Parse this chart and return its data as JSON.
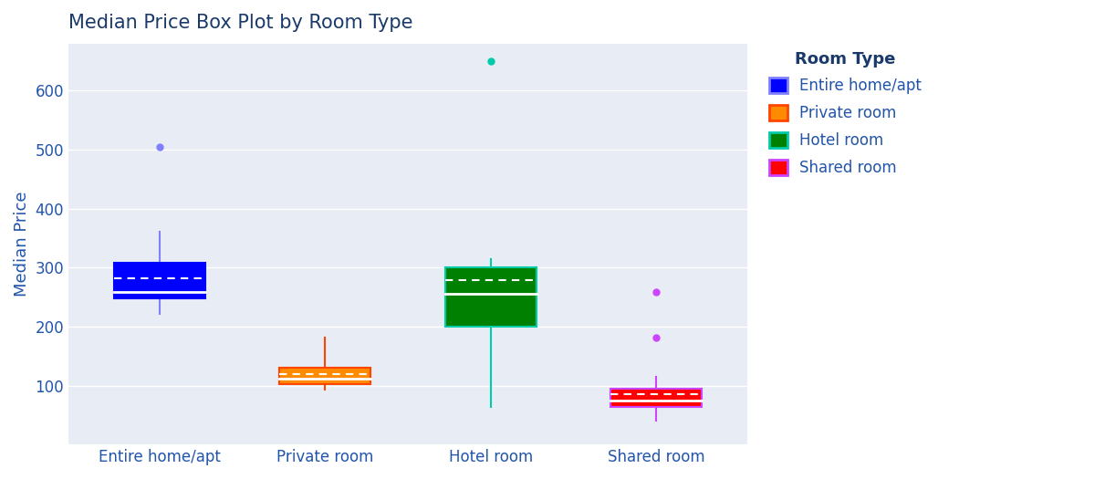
{
  "title": "Median Price Box Plot by Room Type",
  "ylabel": "Median Price",
  "fig_bg": "#ffffff",
  "plot_bg": "#e8edf5",
  "categories": [
    "Entire home/apt",
    "Private room",
    "Hotel room",
    "Shared room"
  ],
  "box_data": [
    {
      "label": "Entire home/apt",
      "box_color": "#0000ff",
      "whisker_color": "#8080ff",
      "outline_color": "#0000ff",
      "med": 258,
      "mean": 282,
      "q1": 248,
      "q3": 308,
      "whislo": 222,
      "whishi": 360,
      "fliers": [
        505
      ]
    },
    {
      "label": "Private room",
      "box_color": "#ff8c00",
      "whisker_color": "#ff4500",
      "outline_color": "#ff4500",
      "med": 112,
      "mean": 120,
      "q1": 103,
      "q3": 130,
      "whislo": 93,
      "whishi": 181,
      "fliers": []
    },
    {
      "label": "Hotel room",
      "box_color": "#008000",
      "whisker_color": "#00ccaa",
      "outline_color": "#00ccaa",
      "med": 255,
      "mean": 278,
      "q1": 200,
      "q3": 300,
      "whislo": 63,
      "whishi": 315,
      "fliers": [
        650
      ]
    },
    {
      "label": "Shared room",
      "box_color": "#ff0000",
      "whisker_color": "#cc44ff",
      "outline_color": "#cc44ff",
      "med": 74,
      "mean": 85,
      "q1": 63,
      "q3": 95,
      "whislo": 40,
      "whishi": 115,
      "fliers": [
        181,
        258
      ]
    }
  ],
  "ylim": [
    0,
    680
  ],
  "yticks": [
    100,
    200,
    300,
    400,
    500,
    600
  ],
  "legend_title": "Room Type",
  "legend_colors": [
    "#0000ff",
    "#ff8c00",
    "#008000",
    "#ff0000"
  ],
  "legend_border_colors": [
    "#8080ff",
    "#ff4500",
    "#00ccaa",
    "#cc44ff"
  ],
  "legend_labels": [
    "Entire home/apt",
    "Private room",
    "Hotel room",
    "Shared room"
  ],
  "title_color": "#1a3a6b",
  "tick_color": "#2255aa",
  "label_color": "#2255aa",
  "grid_color": "#ffffff",
  "box_width": 0.55,
  "title_fontsize": 15,
  "tick_fontsize": 12,
  "ylabel_fontsize": 13
}
